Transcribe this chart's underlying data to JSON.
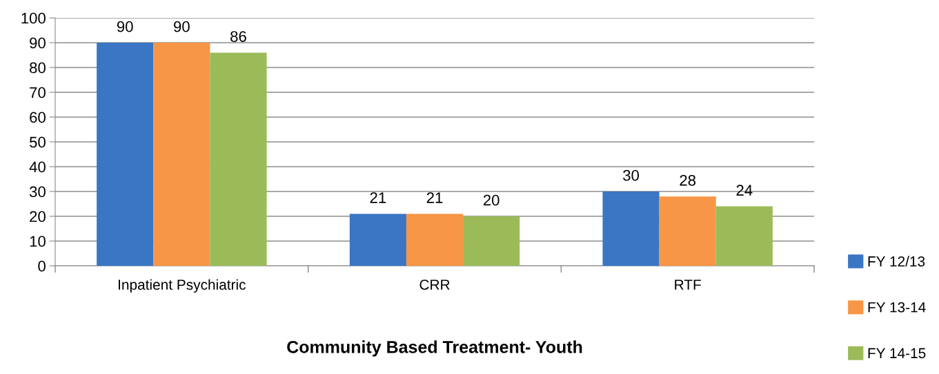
{
  "chart_data": {
    "type": "bar",
    "xlabel": "Community Based Treatment- Youth",
    "categories": [
      "Inpatient Psychiatric",
      "CRR",
      "RTF"
    ],
    "series": [
      {
        "name": "FY 12/13",
        "color": "#3a76c3",
        "values": [
          90,
          21,
          30
        ]
      },
      {
        "name": "FY 13-14",
        "color": "#f79646",
        "values": [
          90,
          21,
          28
        ]
      },
      {
        "name": "FY 14-15",
        "color": "#9bbb59",
        "values": [
          86,
          20,
          24
        ]
      }
    ],
    "ylim": [
      0,
      100
    ],
    "yticks": [
      0,
      10,
      20,
      30,
      40,
      50,
      60,
      70,
      80,
      90,
      100
    ],
    "grid": "y",
    "legend": "bottom right",
    "data_labels": true
  }
}
